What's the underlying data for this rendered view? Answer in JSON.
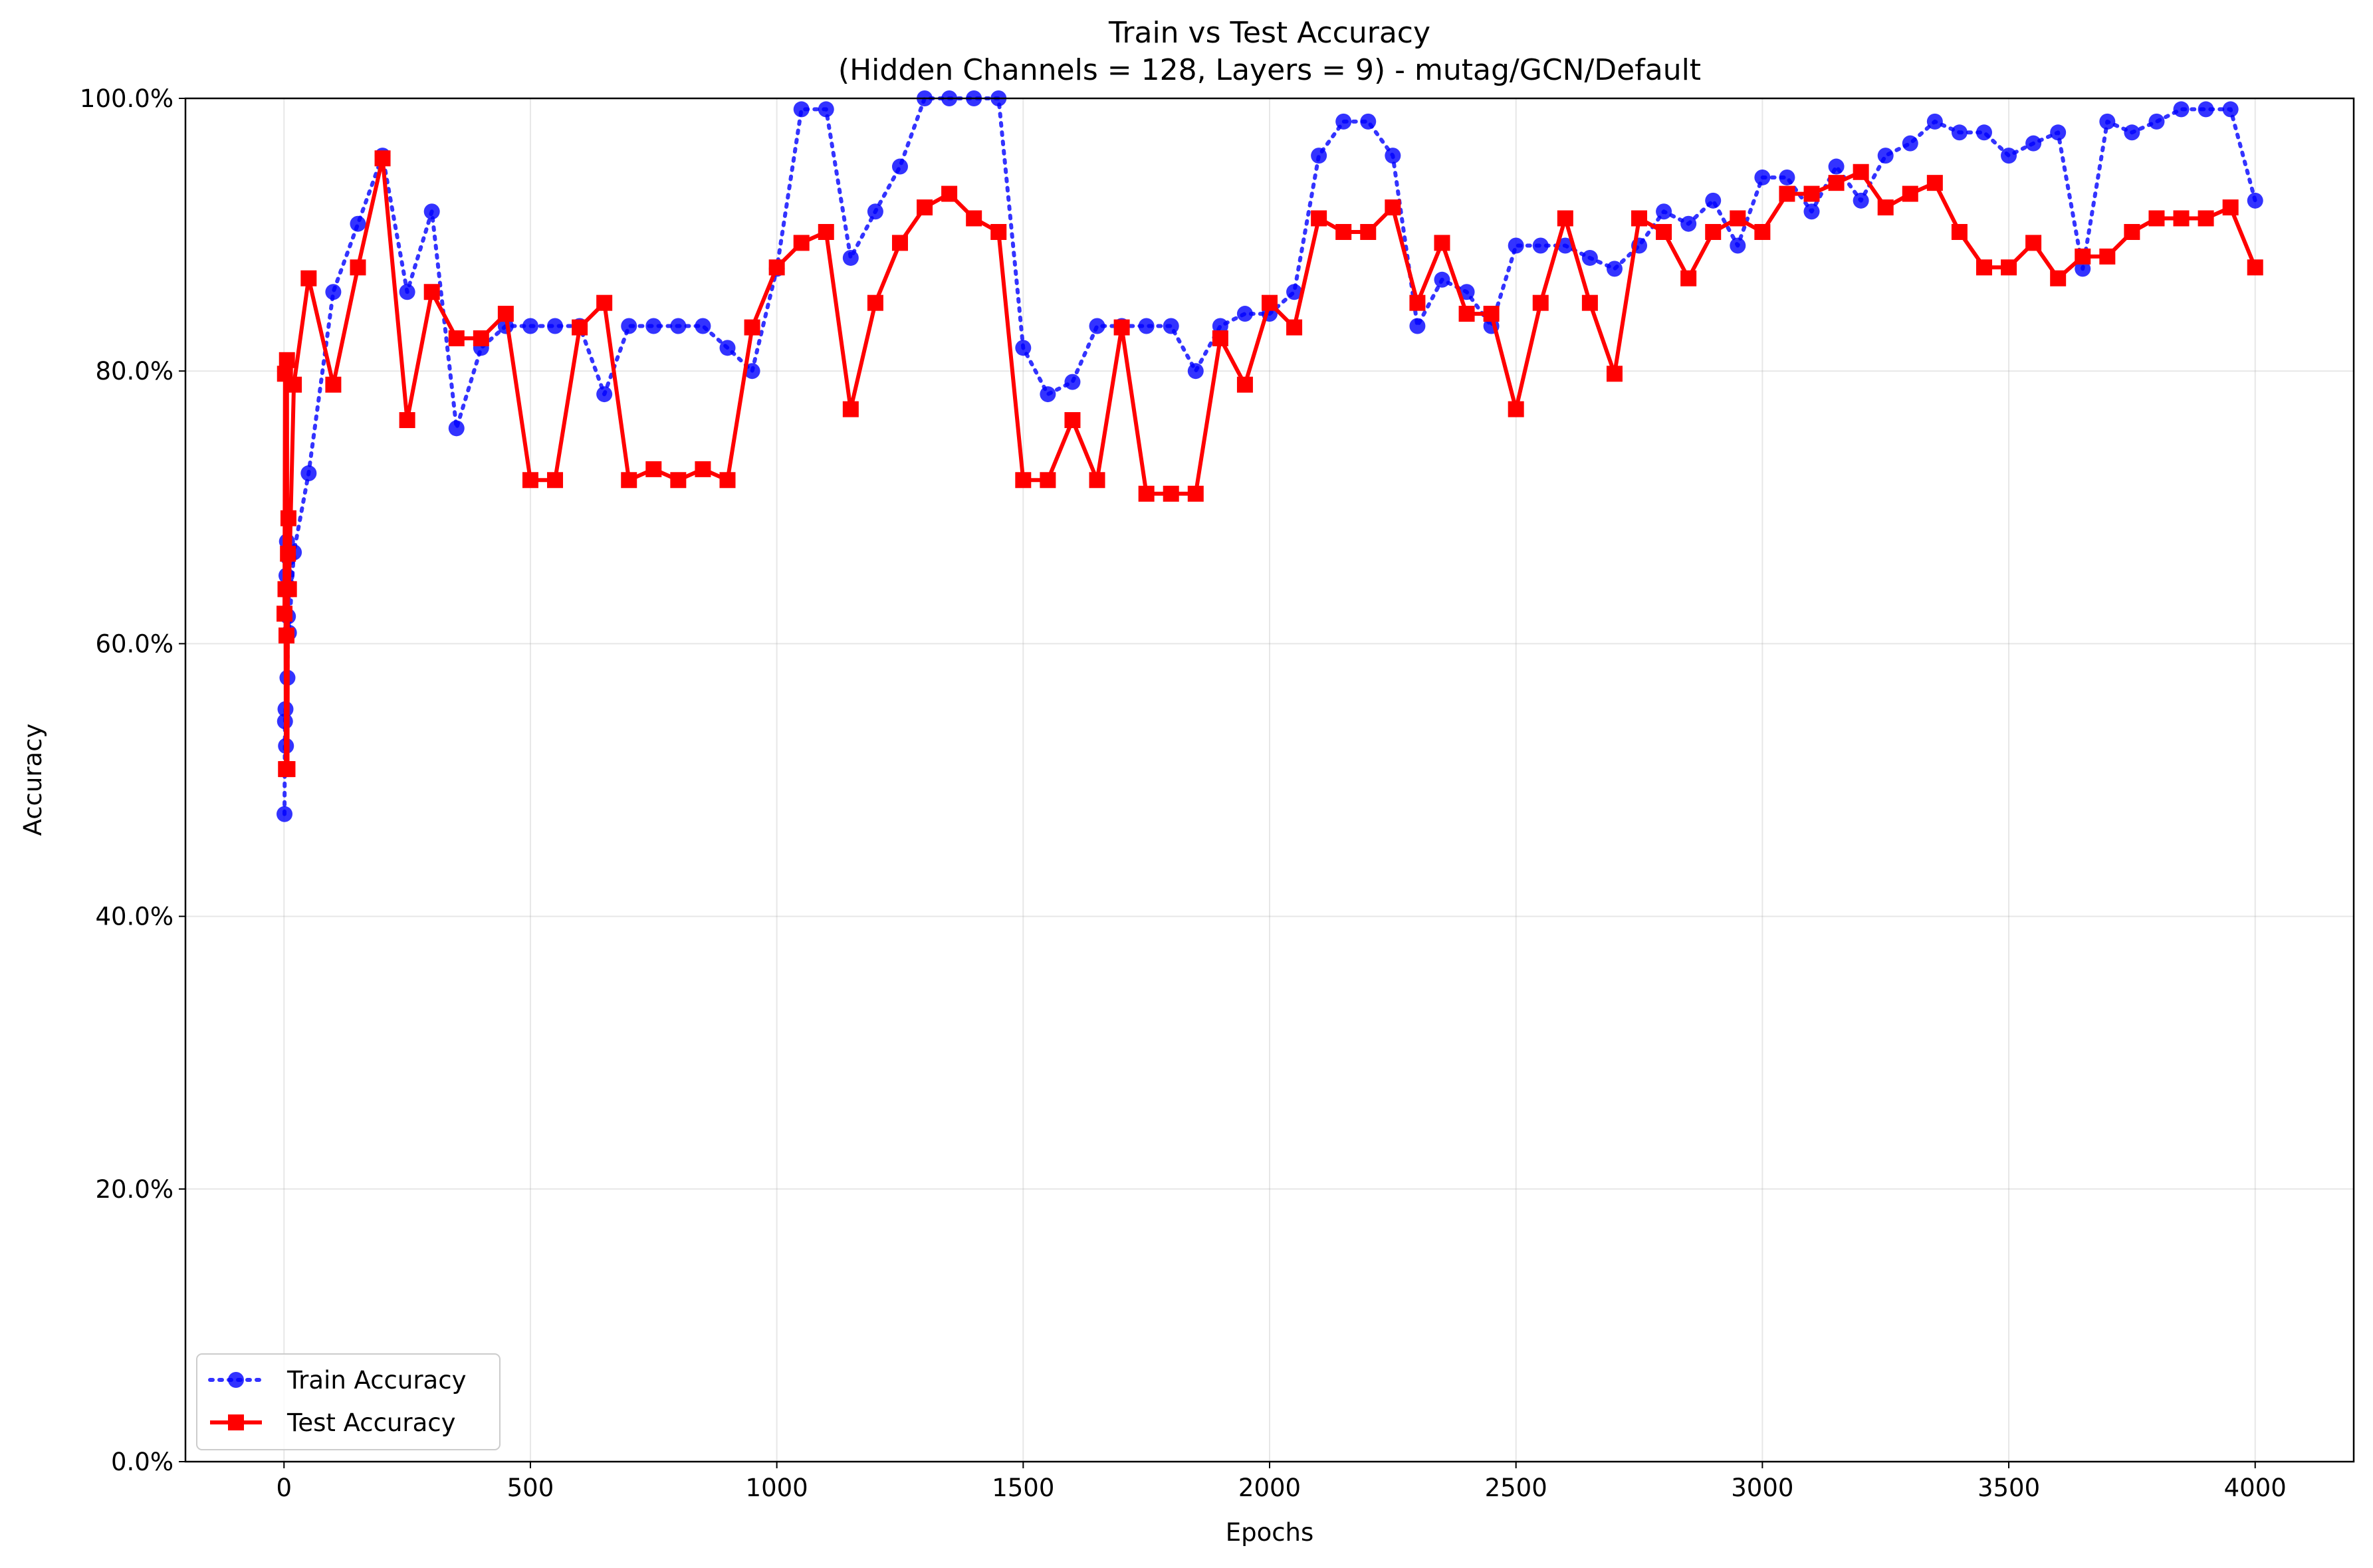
{
  "chart_data": {
    "type": "line",
    "title": "Train vs Test Accuracy",
    "subtitle": "(Hidden Channels = 128, Layers = 9) - mutag/GCN/Default",
    "xlabel": "Epochs",
    "ylabel": "Accuracy",
    "xlim": [
      -200,
      4200
    ],
    "ylim": [
      0,
      1
    ],
    "x_ticks": [
      0,
      500,
      1000,
      1500,
      2000,
      2500,
      3000,
      3500,
      4000
    ],
    "x_tick_labels": [
      "0",
      "500",
      "1000",
      "1500",
      "2000",
      "2500",
      "3000",
      "3500",
      "4000"
    ],
    "y_ticks": [
      0,
      0.2,
      0.4,
      0.6,
      0.8,
      1.0
    ],
    "y_tick_labels": [
      "0.0%",
      "20.0%",
      "40.0%",
      "60.0%",
      "80.0%",
      "100.0%"
    ],
    "grid": true,
    "legend_position": "bottom-left",
    "series": [
      {
        "name": "Train Accuracy",
        "color": "#0000ff",
        "line_style": "dotted",
        "marker": "circle",
        "x": [
          1,
          2,
          3,
          4,
          5,
          6,
          7,
          8,
          9,
          10,
          20,
          50,
          100,
          150,
          200,
          250,
          300,
          350,
          400,
          450,
          500,
          550,
          600,
          650,
          700,
          750,
          800,
          850,
          900,
          950,
          1000,
          1050,
          1100,
          1150,
          1200,
          1250,
          1300,
          1350,
          1400,
          1450,
          1500,
          1550,
          1600,
          1650,
          1700,
          1750,
          1800,
          1850,
          1900,
          1950,
          2000,
          2050,
          2100,
          2150,
          2200,
          2250,
          2300,
          2350,
          2400,
          2450,
          2500,
          2550,
          2600,
          2650,
          2700,
          2750,
          2800,
          2850,
          2900,
          2950,
          3000,
          3050,
          3100,
          3150,
          3200,
          3250,
          3300,
          3350,
          3400,
          3450,
          3500,
          3550,
          3600,
          3650,
          3700,
          3750,
          3800,
          3850,
          3900,
          3950,
          4000
        ],
        "y": [
          0.475,
          0.543,
          0.552,
          0.525,
          0.65,
          0.675,
          0.575,
          0.62,
          0.663,
          0.608,
          0.667,
          0.725,
          0.858,
          0.908,
          0.958,
          0.858,
          0.917,
          0.758,
          0.817,
          0.833,
          0.833,
          0.833,
          0.833,
          0.783,
          0.833,
          0.833,
          0.833,
          0.833,
          0.817,
          0.8,
          0.875,
          0.992,
          0.992,
          0.883,
          0.917,
          0.95,
          1.0,
          1.0,
          1.0,
          1.0,
          0.817,
          0.783,
          0.792,
          0.833,
          0.833,
          0.833,
          0.833,
          0.8,
          0.833,
          0.842,
          0.842,
          0.858,
          0.958,
          0.983,
          0.983,
          0.958,
          0.833,
          0.867,
          0.858,
          0.833,
          0.892,
          0.892,
          0.892,
          0.883,
          0.875,
          0.892,
          0.917,
          0.908,
          0.925,
          0.892,
          0.942,
          0.942,
          0.917,
          0.95,
          0.925,
          0.958,
          0.967,
          0.983,
          0.975,
          0.975,
          0.958,
          0.967,
          0.975,
          0.875,
          0.983,
          0.975,
          0.983,
          0.992,
          0.992,
          0.992,
          0.925
        ]
      },
      {
        "name": "Test Accuracy",
        "color": "#ff0000",
        "line_style": "solid",
        "marker": "square",
        "x": [
          1,
          2,
          3,
          4,
          5,
          6,
          7,
          8,
          9,
          10,
          20,
          50,
          100,
          150,
          200,
          250,
          300,
          350,
          400,
          450,
          500,
          550,
          600,
          650,
          700,
          750,
          800,
          850,
          900,
          950,
          1000,
          1050,
          1100,
          1150,
          1200,
          1250,
          1300,
          1350,
          1400,
          1450,
          1500,
          1550,
          1600,
          1650,
          1700,
          1750,
          1800,
          1850,
          1900,
          1950,
          2000,
          2050,
          2100,
          2150,
          2200,
          2250,
          2300,
          2350,
          2400,
          2450,
          2500,
          2550,
          2600,
          2650,
          2700,
          2750,
          2800,
          2850,
          2900,
          2950,
          3000,
          3050,
          3100,
          3150,
          3200,
          3250,
          3300,
          3350,
          3400,
          3450,
          3500,
          3550,
          3600,
          3650,
          3700,
          3750,
          3800,
          3850,
          3900,
          3950,
          4000
        ],
        "y": [
          0.622,
          0.798,
          0.64,
          0.508,
          0.606,
          0.808,
          0.508,
          0.666,
          0.692,
          0.64,
          0.79,
          0.868,
          0.79,
          0.876,
          0.956,
          0.764,
          0.858,
          0.824,
          0.824,
          0.842,
          0.72,
          0.72,
          0.832,
          0.85,
          0.72,
          0.728,
          0.72,
          0.728,
          0.72,
          0.832,
          0.876,
          0.894,
          0.902,
          0.772,
          0.85,
          0.894,
          0.92,
          0.93,
          0.912,
          0.902,
          0.72,
          0.72,
          0.764,
          0.72,
          0.832,
          0.71,
          0.71,
          0.71,
          0.824,
          0.79,
          0.85,
          0.832,
          0.912,
          0.902,
          0.902,
          0.92,
          0.85,
          0.894,
          0.842,
          0.842,
          0.772,
          0.85,
          0.912,
          0.85,
          0.798,
          0.912,
          0.902,
          0.868,
          0.902,
          0.912,
          0.902,
          0.93,
          0.93,
          0.938,
          0.946,
          0.92,
          0.93,
          0.938,
          0.902,
          0.876,
          0.876,
          0.894,
          0.868,
          0.884,
          0.884,
          0.902,
          0.912,
          0.912,
          0.912,
          0.92,
          0.876
        ]
      }
    ]
  }
}
